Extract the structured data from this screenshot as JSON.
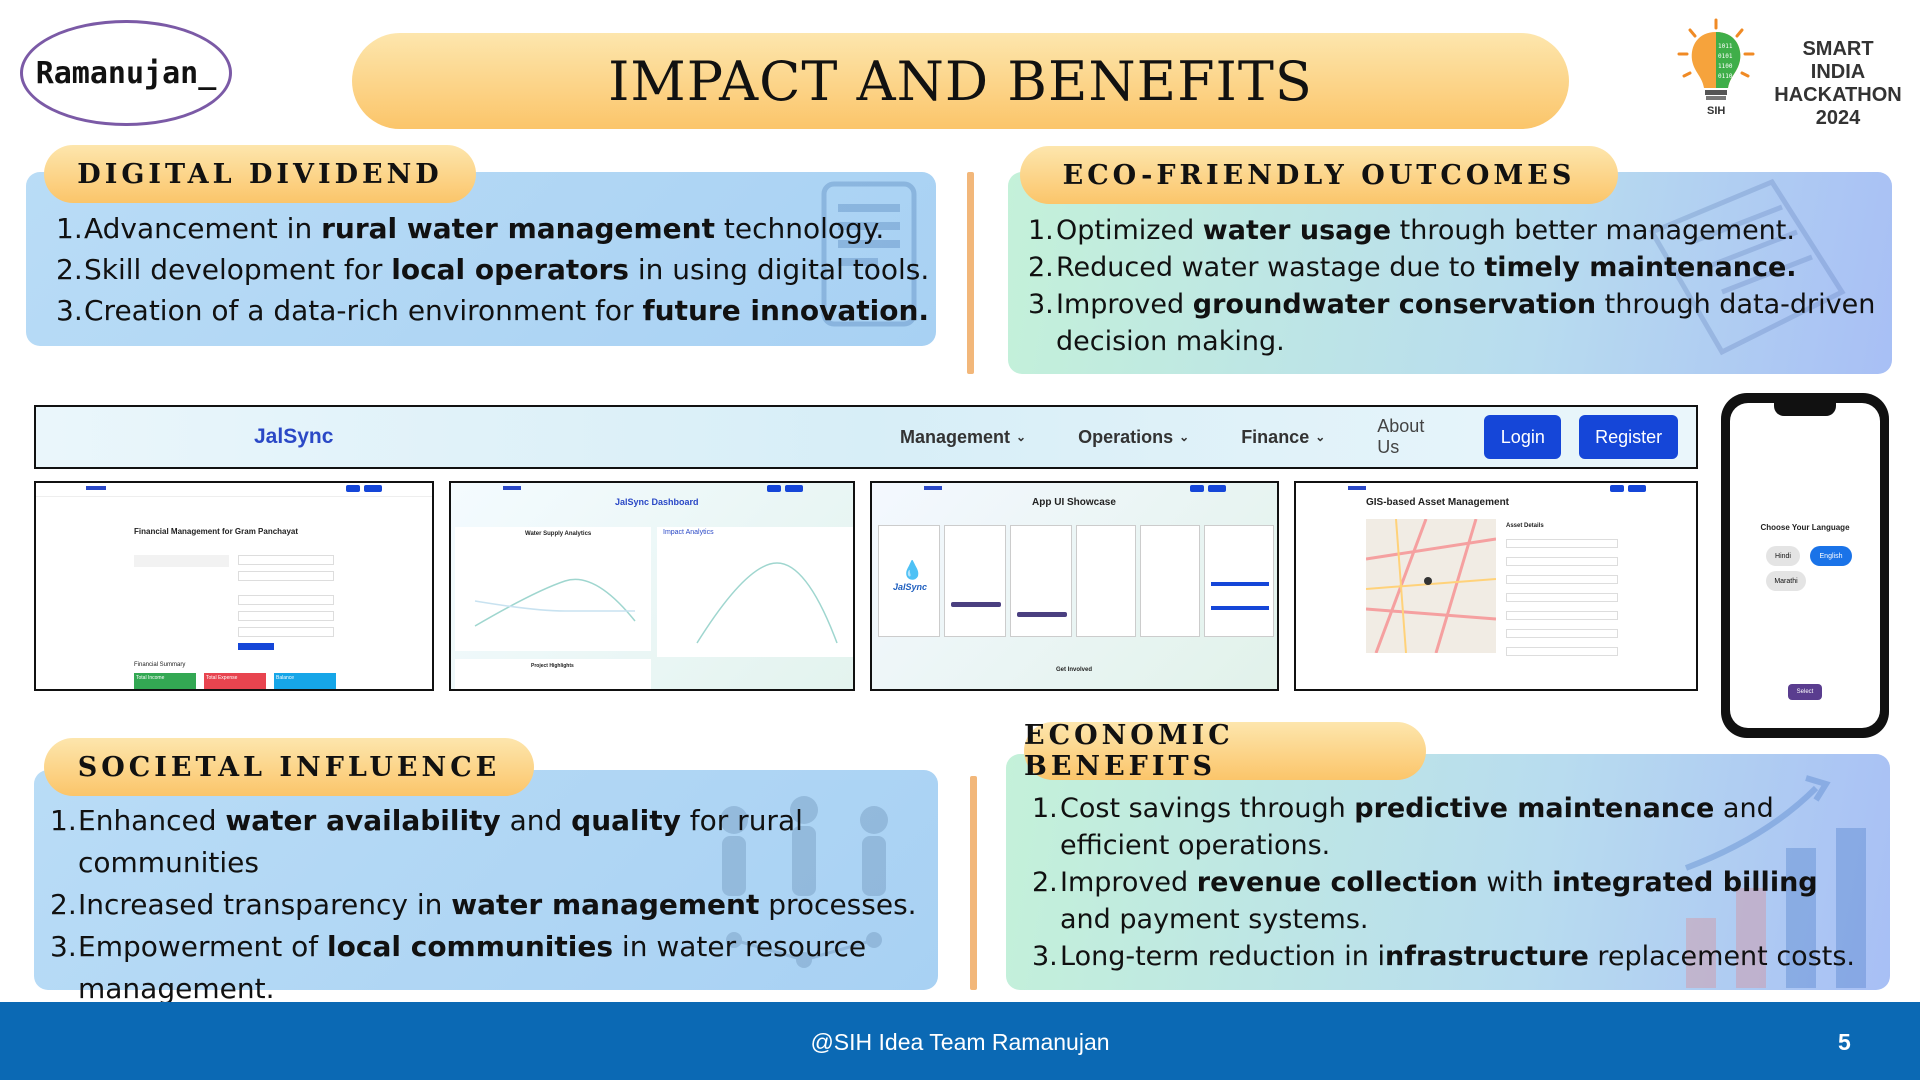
{
  "header": {
    "team_badge": "Ramanujan_",
    "title": "IMPACT AND BENEFITS",
    "logo_text": [
      "SMART INDIA",
      "HACKATHON",
      "2024"
    ],
    "logo_bulb_label": "SIH"
  },
  "sections": {
    "digital_dividend": {
      "heading": "DIGITAL DIVIDEND",
      "points": [
        {
          "num": "1.",
          "parts": [
            {
              "t": "Advancement in "
            },
            {
              "t": "rural water management",
              "b": true
            },
            {
              "t": " technology."
            }
          ]
        },
        {
          "num": "2.",
          "parts": [
            {
              "t": "Skill development for "
            },
            {
              "t": "local operators",
              "b": true
            },
            {
              "t": " in using digital tools."
            }
          ]
        },
        {
          "num": "3.",
          "parts": [
            {
              "t": "Creation of a data-rich environment for "
            },
            {
              "t": "future innovation.",
              "b": true
            }
          ]
        }
      ]
    },
    "eco_friendly": {
      "heading": "ECO-FRIENDLY OUTCOMES",
      "points": [
        {
          "num": "1.",
          "parts": [
            {
              "t": "Optimized "
            },
            {
              "t": "water usage",
              "b": true
            },
            {
              "t": " through better management."
            }
          ]
        },
        {
          "num": "2.",
          "parts": [
            {
              "t": "Reduced water wastage due to "
            },
            {
              "t": "timely maintenance.",
              "b": true
            }
          ]
        },
        {
          "num": "3.",
          "parts": [
            {
              "t": "Improved "
            },
            {
              "t": "groundwater conservation",
              "b": true
            },
            {
              "t": " through data-driven decision making."
            }
          ]
        }
      ]
    },
    "societal_influence": {
      "heading": "SOCIETAL INFLUENCE",
      "points": [
        {
          "num": "1.",
          "parts": [
            {
              "t": "Enhanced "
            },
            {
              "t": "water availability",
              "b": true
            },
            {
              "t": " and "
            },
            {
              "t": "quality",
              "b": true
            },
            {
              "t": " for rural communities"
            }
          ]
        },
        {
          "num": "2.",
          "parts": [
            {
              "t": "Increased transparency in "
            },
            {
              "t": "water management",
              "b": true
            },
            {
              "t": " processes."
            }
          ]
        },
        {
          "num": "3.",
          "parts": [
            {
              "t": "Empowerment of "
            },
            {
              "t": "local communities",
              "b": true
            },
            {
              "t": " in water resource management."
            }
          ]
        }
      ]
    },
    "economic_benefits": {
      "heading": "ECONOMIC BENEFITS",
      "points": [
        {
          "num": "1.",
          "parts": [
            {
              "t": "Cost savings through "
            },
            {
              "t": "predictive maintenance",
              "b": true
            },
            {
              "t": " and efficient operations."
            }
          ]
        },
        {
          "num": "2.",
          "parts": [
            {
              "t": "Improved "
            },
            {
              "t": "revenue collection",
              "b": true
            },
            {
              "t": " with "
            },
            {
              "t": "integrated billing",
              "b": true
            },
            {
              "t": " and payment systems."
            }
          ]
        },
        {
          "num": "3.",
          "parts": [
            {
              "t": "Long-term reduction in i"
            },
            {
              "t": "nfrastructure",
              "b": true
            },
            {
              "t": " replacement costs."
            }
          ]
        }
      ]
    }
  },
  "navbar_shot": {
    "brand": "JalSync",
    "menus": [
      "Management",
      "Operations",
      "Finance"
    ],
    "about": "About Us",
    "login": "Login",
    "register": "Register"
  },
  "screenshots": {
    "finance": {
      "title": "Financial Management for Gram Panchayat",
      "summary_label": "Financial Summary",
      "cards": [
        "Total Income",
        "Total Expense",
        "Balance"
      ]
    },
    "dashboard": {
      "title": "JalSync Dashboard",
      "chart1": "Water Supply Analytics",
      "chart2": "Impact Analytics",
      "highlights": "Project Highlights"
    },
    "app_ui": {
      "title": "App UI Showcase",
      "brand": "JalSync",
      "get_involved": "Get Involved"
    },
    "gis": {
      "title": "GIS-based Asset Management",
      "details": "Asset Details"
    }
  },
  "phone": {
    "heading": "Choose Your Language",
    "languages": [
      "Hindi",
      "English",
      "Marathi"
    ],
    "select": "Select"
  },
  "footer": {
    "text": "@SIH Idea Team Ramanujan",
    "page": "5"
  },
  "colors": {
    "accent_orange": "#fbc56a",
    "panel_blue": "#a8d1f3",
    "footer_blue": "#0b69b4",
    "nav_button": "#1546d8"
  }
}
